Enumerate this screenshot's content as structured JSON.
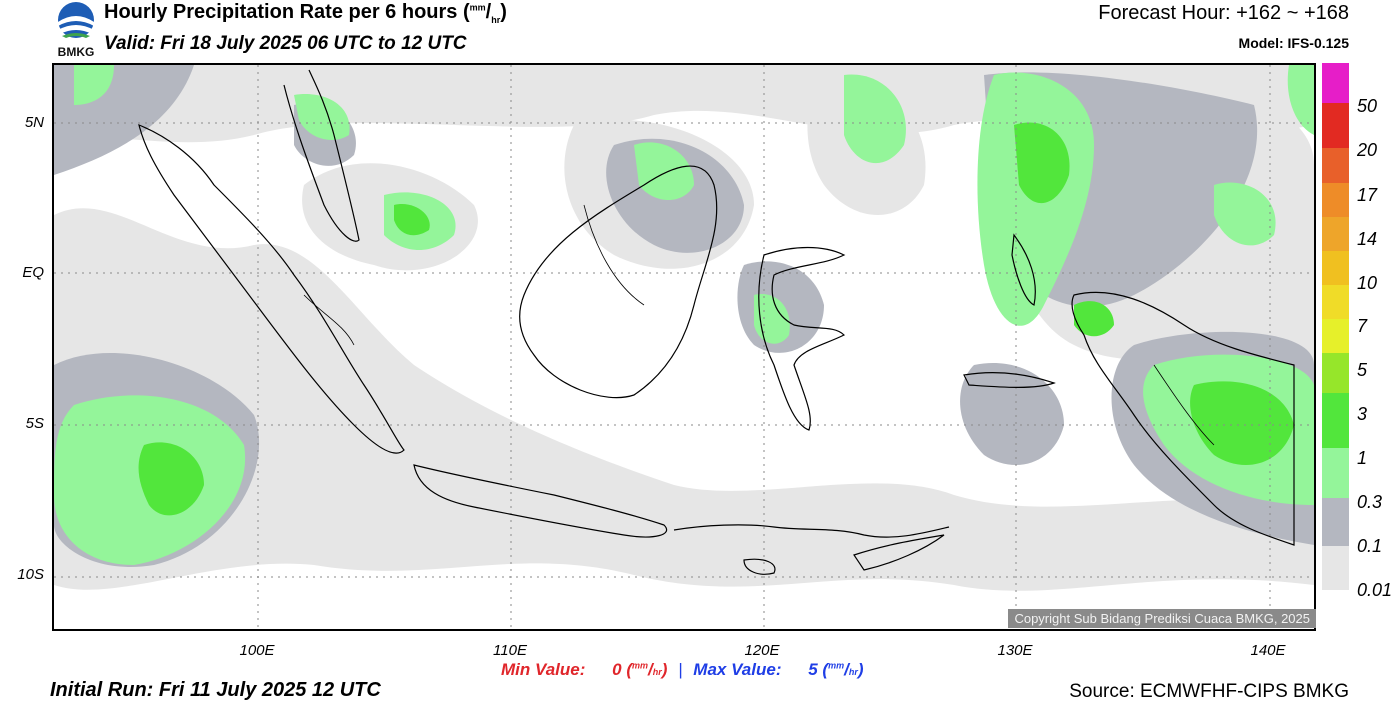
{
  "header": {
    "logo_text": "BMKG",
    "title": "Hourly Precipitation Rate per 6 hours (",
    "title_unit_mm": "mm",
    "title_unit_hr": "hr",
    "title_close": ")",
    "valid": "Valid: Fri 18 July 2025 06 UTC to 12 UTC",
    "forecast_hour": "Forecast Hour: +162 ~ +168",
    "model": "Model: IFS-0.125"
  },
  "axes": {
    "lat_labels": [
      "5N",
      "EQ",
      "5S",
      "10S"
    ],
    "lon_labels": [
      "100E",
      "110E",
      "120E",
      "130E",
      "140E"
    ]
  },
  "legend": {
    "levels": [
      "0.01",
      "0.1",
      "0.3",
      "1",
      "3",
      "5",
      "7",
      "10",
      "14",
      "17",
      "20",
      "50"
    ],
    "colors": [
      "#e6e6e6",
      "#b4b7c0",
      "#94f59a",
      "#52e63c",
      "#96e62a",
      "#e6f02a",
      "#f0dc28",
      "#f0c020",
      "#eea52a",
      "#ee8c28",
      "#e8602a",
      "#e22a22",
      "#e61ec8"
    ]
  },
  "footer": {
    "copyright": "Copyright Sub Bidang Prediksi Cuaca BMKG, 2025",
    "min_label": "Min Value:",
    "min_value": "0",
    "max_label": "Max Value:",
    "max_value": "5",
    "unit_mm": "mm",
    "unit_hr": "hr",
    "separator": "|",
    "initial_run": "Initial Run: Fri 11 July 2025 12 UTC",
    "source": "Source: ECMWFHF-CIPS BMKG"
  }
}
